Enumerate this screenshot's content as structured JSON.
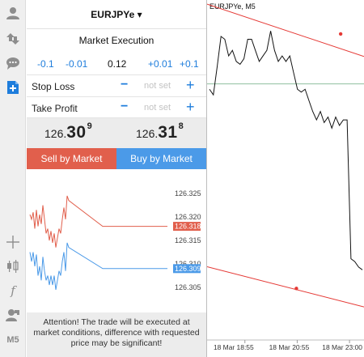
{
  "toolbar": {
    "items": [
      {
        "icon": "accounts-icon"
      },
      {
        "icon": "trade-icon"
      },
      {
        "icon": "chat-icon"
      },
      {
        "icon": "new-order-icon"
      },
      {
        "icon": "crosshair-icon"
      },
      {
        "icon": "bars-icon"
      },
      {
        "icon": "indicators-icon"
      },
      {
        "icon": "objects-icon"
      }
    ],
    "timeframe": "M5"
  },
  "order": {
    "symbol": "EURJPYe ▾",
    "execution": "Market Execution",
    "volume_steps": [
      "-0.1",
      "-0.01",
      "0.12",
      "+0.01",
      "+0.1"
    ],
    "stop_loss": {
      "label": "Stop Loss",
      "minus": "−",
      "value": "not set",
      "plus": "+"
    },
    "take_profit": {
      "label": "Take Profit",
      "minus": "−",
      "value": "not set",
      "plus": "+"
    },
    "bid": {
      "prefix": "126.",
      "big": "30",
      "sup": "9"
    },
    "ask": {
      "prefix": "126.",
      "big": "31",
      "sup": "8"
    },
    "sell_label": "Sell by Market",
    "buy_label": "Buy by Market",
    "attention": "Attention! The trade will be executed at market conditions, difference with requested price may be significant!"
  },
  "mini_chart": {
    "ticks": [
      "126.325",
      "126.320",
      "126.315",
      "126.310",
      "126.305"
    ],
    "ask_label": "126.318",
    "bid_label": "126.309",
    "ask_color": "#e15f4c",
    "bid_color": "#4b9ae8",
    "ask_series": [
      126.3205,
      126.3195,
      126.321,
      126.3175,
      126.3215,
      126.318,
      126.3205,
      126.3185,
      126.3225,
      126.3195,
      126.3165,
      126.3175,
      126.315,
      126.317,
      126.3145,
      126.3165,
      126.3135,
      126.3155,
      126.3175,
      126.3165,
      126.3195,
      126.322,
      126.3195,
      126.3245,
      126.3235,
      126.318,
      126.318,
      126.318
    ],
    "bid_series": [
      126.3125,
      126.3105,
      126.3125,
      126.3095,
      126.312,
      126.3075,
      126.3095,
      126.3065,
      126.3115,
      126.3085,
      126.3065,
      126.3075,
      126.3055,
      126.3075,
      126.3055,
      126.3075,
      126.3045,
      126.3065,
      126.3085,
      126.3075,
      126.3105,
      126.3125,
      126.3085,
      126.3145,
      126.3135,
      126.309,
      126.309,
      126.309
    ]
  },
  "main_chart": {
    "title": "EURJPYe, M5",
    "time_labels": [
      "18 Mar 18:55",
      "18 Mar 20:55",
      "18 Mar 23:00"
    ],
    "price_series": [
      0.74,
      0.72,
      0.82,
      0.93,
      0.92,
      0.86,
      0.88,
      0.84,
      0.83,
      0.85,
      0.92,
      0.92,
      0.88,
      0.84,
      0.86,
      0.88,
      0.95,
      0.88,
      0.84,
      0.86,
      0.84,
      0.86,
      0.8,
      0.74,
      0.73,
      0.74,
      0.7,
      0.66,
      0.63,
      0.66,
      0.62,
      0.64,
      0.6,
      0.64,
      0.61,
      0.63,
      0.63,
      0.13,
      0.12,
      0.1,
      0.09
    ],
    "channel_color": "#e53935",
    "hline_color": "#8fbf9f"
  }
}
